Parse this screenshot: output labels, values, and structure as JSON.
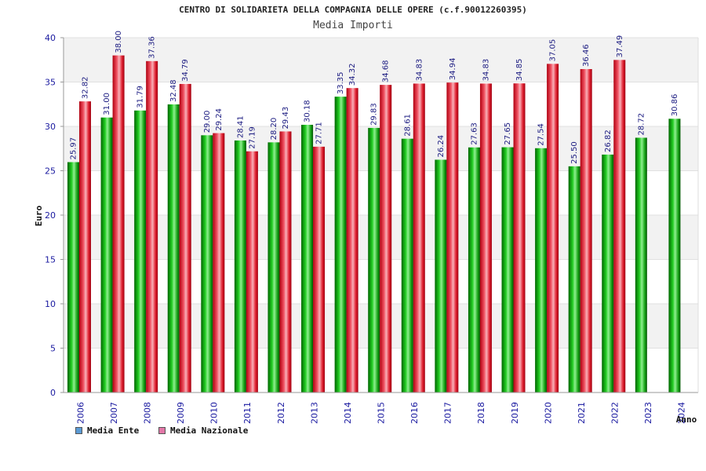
{
  "chart_data": {
    "type": "bar",
    "title": "CENTRO DI SOLIDARIETA DELLA COMPAGNIA DELLE OPERE (c.f.90012260395)",
    "subtitle": "Media Importi",
    "xlabel": "Anno",
    "ylabel": "Euro",
    "ylim": [
      0,
      40
    ],
    "yticks": [
      0,
      5,
      10,
      15,
      20,
      25,
      30,
      35,
      40
    ],
    "categories": [
      "2006",
      "2007",
      "2008",
      "2009",
      "2010",
      "2011",
      "2012",
      "2013",
      "2014",
      "2015",
      "2016",
      "2017",
      "2018",
      "2019",
      "2020",
      "2021",
      "2022",
      "2023",
      "2024"
    ],
    "series": [
      {
        "name": "Media Ente",
        "legend_color": "#5b9bd5",
        "bar_color": "#1aa81a",
        "values": [
          25.97,
          31.0,
          31.79,
          32.48,
          29.0,
          28.41,
          28.2,
          30.18,
          33.35,
          29.83,
          28.61,
          26.24,
          27.63,
          27.65,
          27.54,
          25.5,
          26.82,
          28.72,
          30.86
        ],
        "labels": [
          "25.97",
          "31.00",
          "31.79",
          "32.48",
          "29.00",
          "28.41",
          "28.20",
          "30.18",
          "33.35",
          "29.83",
          "28.61",
          "26.24",
          "27.63",
          "27.65",
          "27.54",
          "25.50",
          "26.82",
          "28.72",
          "30.86"
        ]
      },
      {
        "name": "Media Nazionale",
        "legend_color": "#e377a8",
        "bar_color": "#e02030",
        "values": [
          32.82,
          38.0,
          37.36,
          34.79,
          29.24,
          27.19,
          29.43,
          27.71,
          34.32,
          34.68,
          34.83,
          34.94,
          34.83,
          34.85,
          37.05,
          36.46,
          37.49,
          null,
          null
        ],
        "labels": [
          "32.82",
          "38.00",
          "37.36",
          "34.79",
          "29.24",
          "27.19",
          "29.43",
          "27.71",
          "34.32",
          "34.68",
          "34.83",
          "34.94",
          "34.83",
          "34.85",
          "37.05",
          "36.46",
          "37.49",
          null,
          null
        ]
      }
    ],
    "legend_position": "bottom-left",
    "grid": true
  }
}
